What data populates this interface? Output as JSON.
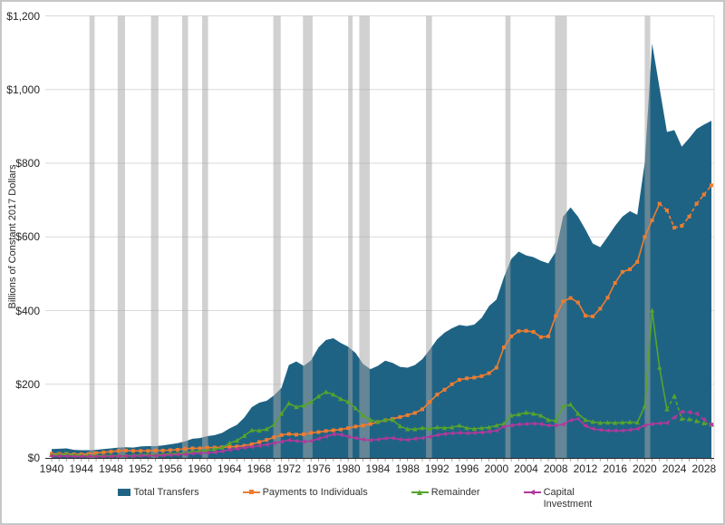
{
  "window": {
    "background": "#ffffff",
    "border_color": "#c6c6c6"
  },
  "chart_data": {
    "type": "area",
    "title": "",
    "xlabel": "",
    "ylabel": "Billions of Constant 2017 Dollars",
    "ylim": [
      0,
      1200
    ],
    "x_range": [
      1940,
      2029
    ],
    "grid": "horizontal",
    "legend_position": "bottom",
    "y_ticks": [
      {
        "value": 0,
        "label": "$0"
      },
      {
        "value": 200,
        "label": "$200"
      },
      {
        "value": 400,
        "label": "$400"
      },
      {
        "value": 600,
        "label": "$600"
      },
      {
        "value": 800,
        "label": "$800"
      },
      {
        "value": 1000,
        "label": "$1,000"
      },
      {
        "value": 1200,
        "label": "$1,200"
      }
    ],
    "x_ticks": [
      "1940",
      "1944",
      "1948",
      "1952",
      "1956",
      "1960",
      "1964",
      "1968",
      "1972",
      "1976",
      "1980",
      "1984",
      "1988",
      "1992",
      "1996",
      "2000",
      "2004",
      "2008",
      "2012",
      "2016",
      "2020",
      "2024",
      "2028"
    ],
    "recession_bands": [
      [
        1945.1,
        1945.8
      ],
      [
        1948.9,
        1949.9
      ],
      [
        1953.4,
        1954.4
      ],
      [
        1957.6,
        1958.4
      ],
      [
        1960.3,
        1961.1
      ],
      [
        1969.9,
        1970.9
      ],
      [
        1973.9,
        1975.2
      ],
      [
        1980.0,
        1980.6
      ],
      [
        1981.5,
        1982.9
      ],
      [
        1990.5,
        1991.3
      ],
      [
        2001.2,
        2001.9
      ],
      [
        2007.9,
        2009.5
      ],
      [
        2020.0,
        2020.75
      ]
    ],
    "colors": {
      "area": "#1F6384",
      "payments": "#ED7D31",
      "remainder": "#55A42C",
      "capital": "#B0399B",
      "recession_band": "rgba(166,166,166,0.52)",
      "gridline": "#D9D9D9",
      "axis": "#262626",
      "tick": "#A6A6A6"
    },
    "series": [
      {
        "name": "Total Transfers",
        "type": "area",
        "color": "#1F6384",
        "values": [
          24,
          25,
          26,
          22,
          21,
          21,
          22,
          24,
          26,
          28,
          29,
          28,
          31,
          32,
          32,
          34,
          37,
          40,
          45,
          52,
          54,
          59,
          62,
          68,
          80,
          90,
          110,
          138,
          150,
          155,
          170,
          190,
          252,
          262,
          250,
          265,
          300,
          320,
          325,
          312,
          302,
          285,
          255,
          241,
          250,
          264,
          258,
          247,
          245,
          252,
          268,
          294,
          322,
          340,
          352,
          361,
          358,
          362,
          380,
          412,
          430,
          490,
          540,
          560,
          550,
          545,
          535,
          528,
          560,
          655,
          680,
          655,
          620,
          582,
          572,
          600,
          630,
          655,
          670,
          660,
          800,
          1125,
          1005,
          885,
          890,
          845,
          868,
          893,
          905,
          915
        ]
      },
      {
        "name": "Payments to Individuals",
        "type": "line",
        "marker": "square",
        "color": "#ED7D31",
        "dashed_from": 2022,
        "values": [
          11,
          11,
          11,
          10,
          10,
          11,
          13,
          15,
          17,
          19,
          20,
          19,
          19,
          19,
          20,
          20,
          21,
          22,
          25,
          26,
          26,
          28,
          28,
          29,
          30,
          31,
          33,
          37,
          43,
          49,
          56,
          62,
          65,
          63,
          64,
          68,
          70,
          73,
          75,
          77,
          81,
          85,
          88,
          92,
          97,
          102,
          106,
          111,
          116,
          122,
          132,
          152,
          172,
          185,
          200,
          212,
          216,
          218,
          222,
          230,
          245,
          300,
          330,
          344,
          345,
          342,
          328,
          330,
          385,
          425,
          434,
          422,
          386,
          384,
          405,
          435,
          475,
          505,
          512,
          532,
          600,
          645,
          690,
          672,
          625,
          630,
          655,
          690,
          715,
          740
        ]
      },
      {
        "name": "Remainder",
        "type": "line",
        "marker": "triangle-up",
        "color": "#55A42C",
        "dashed_from": 2023,
        "values": [
          8,
          9,
          10,
          8,
          7,
          6,
          6,
          6,
          6,
          6,
          6,
          6,
          8,
          9,
          8,
          9,
          11,
          12,
          13,
          17,
          18,
          20,
          23,
          28,
          40,
          47,
          60,
          75,
          74,
          78,
          90,
          120,
          148,
          138,
          142,
          152,
          167,
          179,
          172,
          160,
          152,
          135,
          115,
          103,
          98,
          103,
          103,
          86,
          78,
          78,
          81,
          79,
          83,
          81,
          83,
          88,
          81,
          79,
          81,
          83,
          88,
          93,
          115,
          118,
          123,
          120,
          115,
          103,
          101,
          140,
          145,
          120,
          103,
          98,
          95,
          96,
          95,
          96,
          97,
          96,
          140,
          400,
          245,
          132,
          168,
          106,
          105,
          100,
          94,
          91
        ]
      },
      {
        "name": "Capital Investment",
        "type": "line",
        "marker": "triangle-left",
        "color": "#B0399B",
        "dashed_from": 2023,
        "values": [
          5,
          5,
          5,
          4,
          4,
          4,
          4,
          4,
          4,
          5,
          5,
          5,
          6,
          6,
          6,
          7,
          8,
          9,
          10,
          12,
          13,
          14,
          15,
          18,
          22,
          25,
          28,
          30,
          33,
          36,
          40,
          44,
          48,
          46,
          44,
          46,
          52,
          58,
          64,
          63,
          58,
          54,
          50,
          48,
          50,
          53,
          54,
          50,
          49,
          52,
          54,
          57,
          62,
          65,
          67,
          68,
          67,
          68,
          69,
          71,
          74,
          85,
          88,
          91,
          92,
          93,
          92,
          88,
          88,
          91,
          102,
          106,
          87,
          79,
          76,
          74,
          74,
          74,
          76,
          79,
          88,
          92,
          94,
          95,
          110,
          125,
          124,
          120,
          104,
          90
        ]
      }
    ]
  },
  "legend": {
    "items": [
      {
        "label": "Total Transfers"
      },
      {
        "label": "Payments to Individuals"
      },
      {
        "label": "Remainder"
      },
      {
        "label": "Capital Investment"
      }
    ]
  }
}
